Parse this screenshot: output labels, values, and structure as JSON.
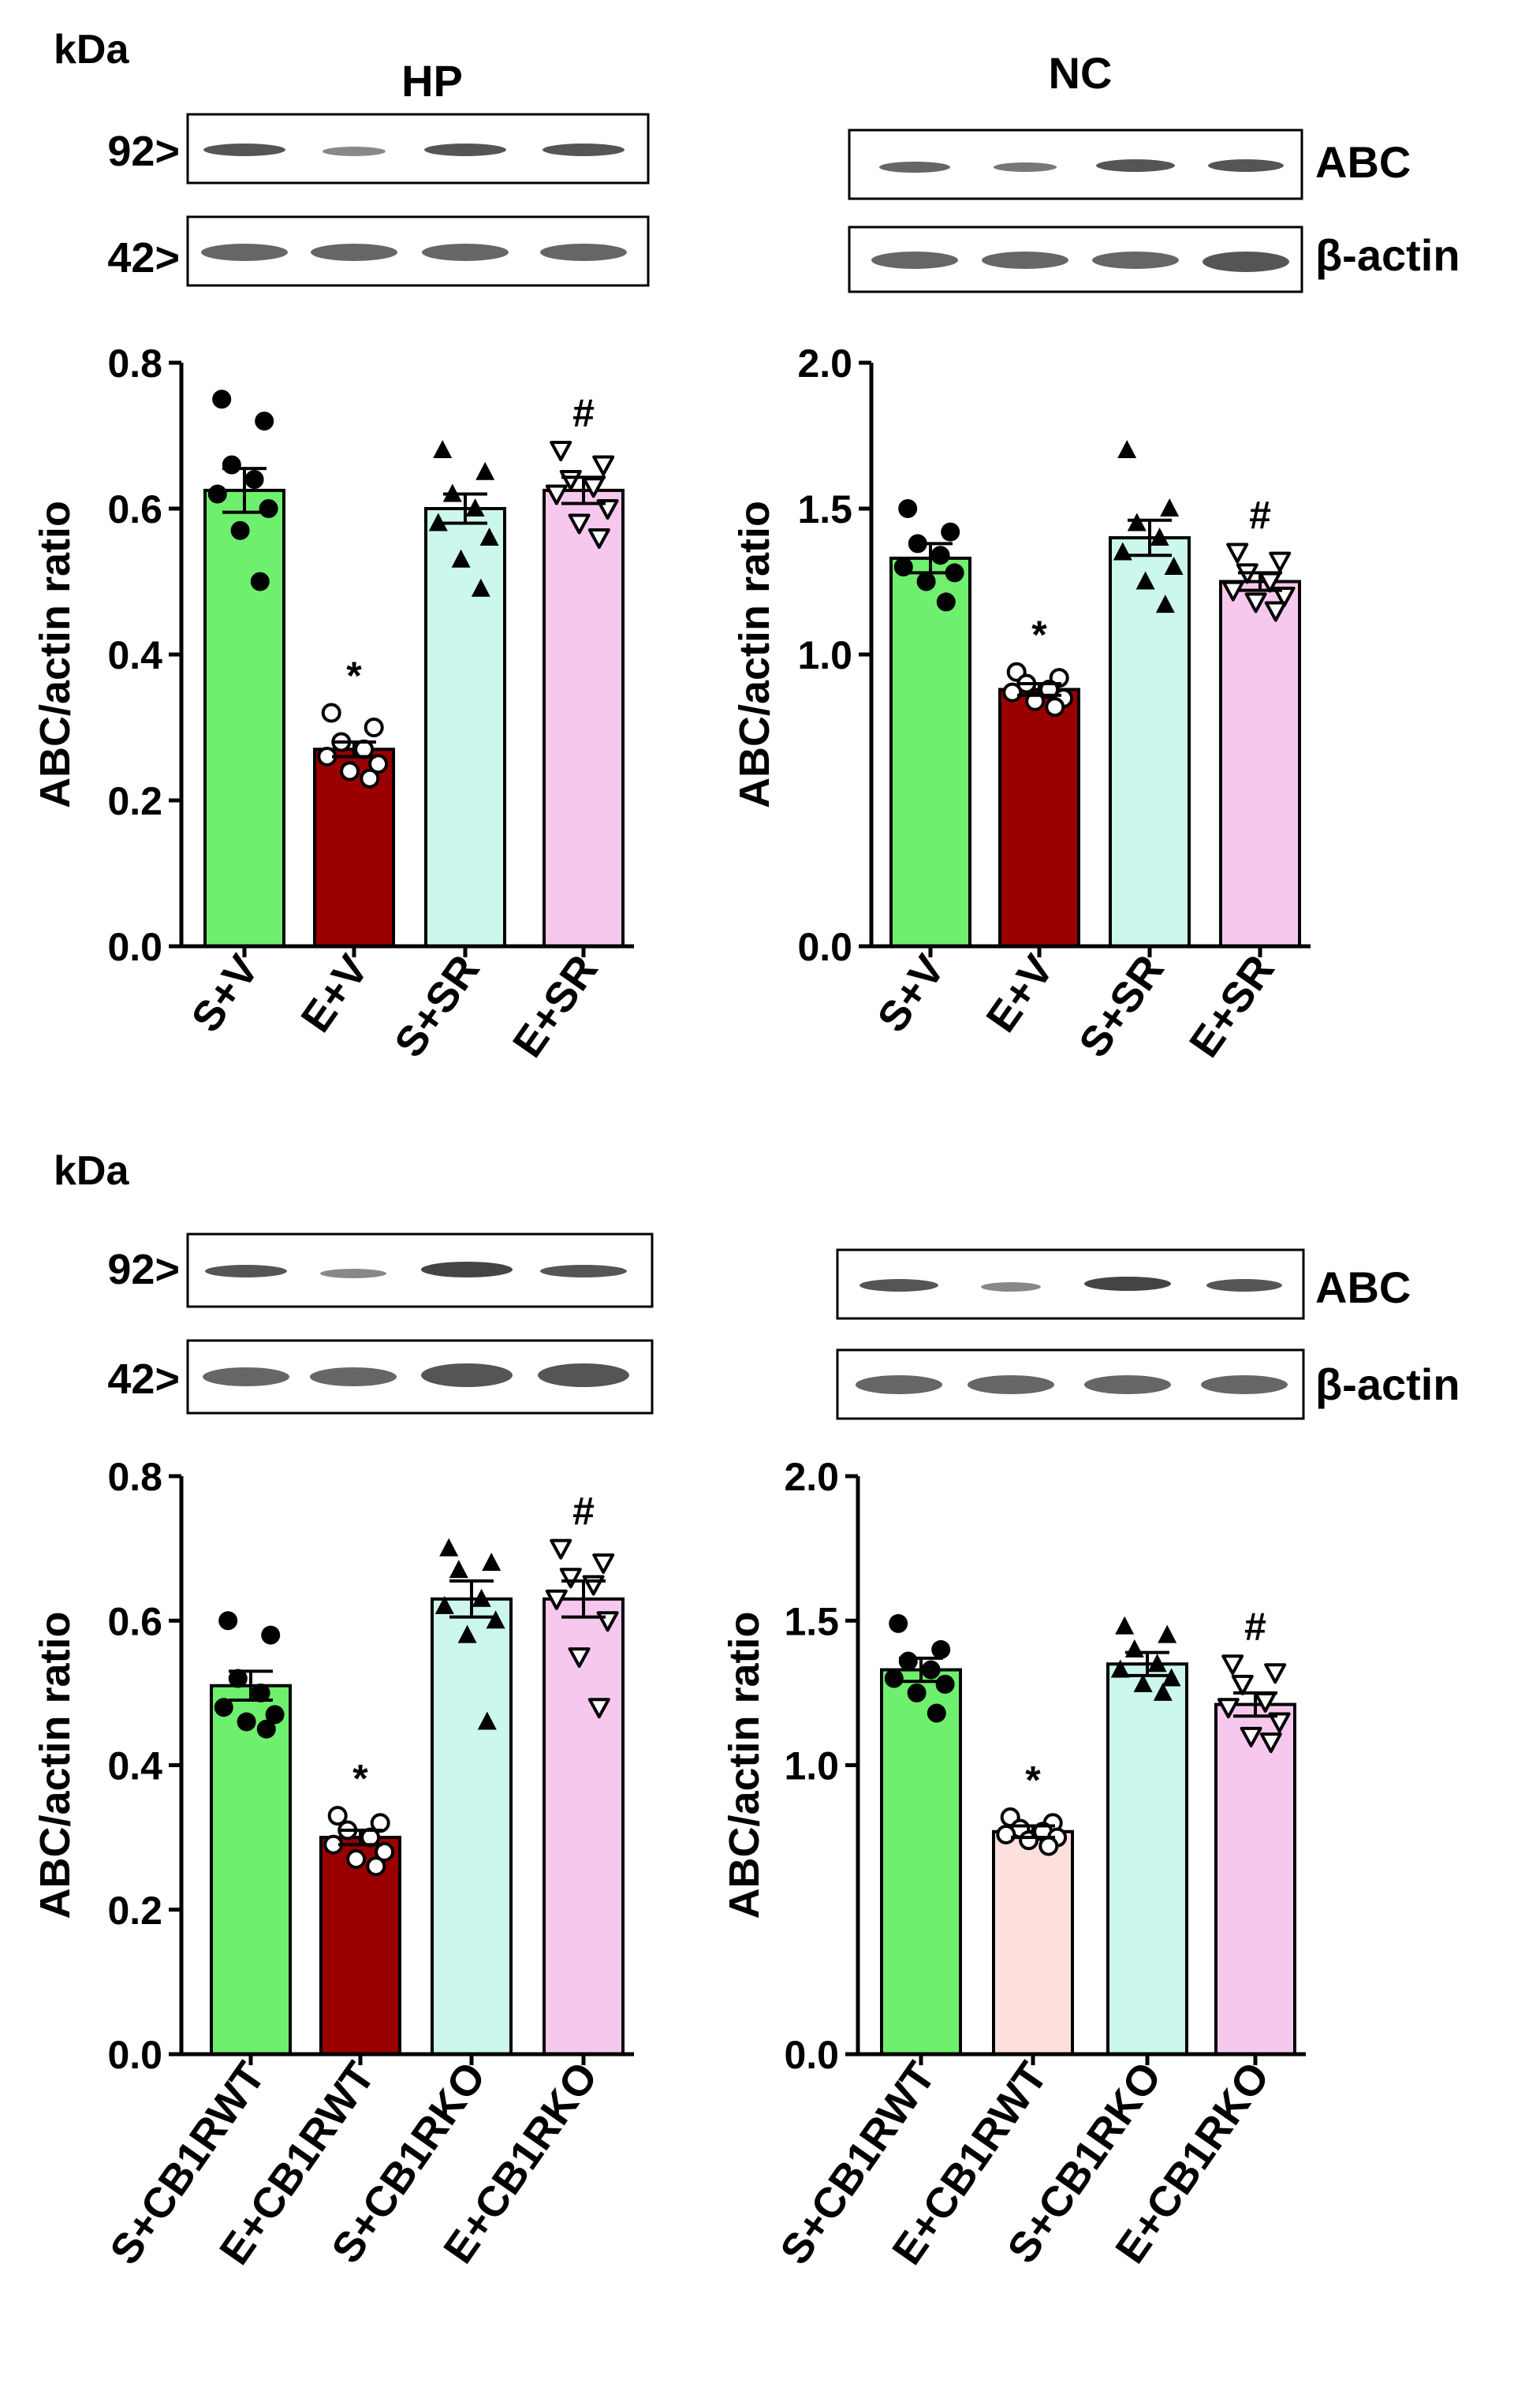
{
  "colors": {
    "green": "#6ef06e",
    "darkred": "#9b0000",
    "mint": "#ccf7ec",
    "pink": "#f7c8ee",
    "lightpink": "#fde0de",
    "black": "#000000"
  },
  "panels": [
    {
      "kda_label": "kDa",
      "blot_title": "HP",
      "markers": [
        "92>",
        "42>"
      ],
      "band_labels": []
    },
    {
      "kda_label": "",
      "blot_title": "NC",
      "markers": [],
      "band_labels": [
        "ABC",
        "β-actin"
      ]
    },
    {
      "kda_label": "kDa",
      "blot_title": "",
      "markers": [
        "92>",
        "42>"
      ],
      "band_labels": []
    },
    {
      "kda_label": "",
      "blot_title": "",
      "markers": [],
      "band_labels": [
        "ABC",
        "β-actin"
      ]
    }
  ],
  "chart_data": [
    {
      "type": "bar",
      "panel": "HP",
      "ylabel": "ABC/actin ratio",
      "ylim": [
        0,
        0.8
      ],
      "yticks": [
        "0.0",
        "0.2",
        "0.4",
        "0.6",
        "0.8"
      ],
      "categories": [
        "S+V",
        "E+V",
        "S+SR",
        "E+SR"
      ],
      "values": [
        0.625,
        0.27,
        0.6,
        0.625
      ],
      "sem": [
        0.03,
        0.01,
        0.02,
        0.018
      ],
      "marker_shapes": [
        "circle-filled",
        "circle-open",
        "triangle-up",
        "triangle-down-open"
      ],
      "bar_colors": [
        "green",
        "darkred",
        "mint",
        "pink"
      ],
      "significance": [
        "",
        "*",
        "",
        "#"
      ],
      "points": [
        [
          0.75,
          0.72,
          0.66,
          0.64,
          0.62,
          0.6,
          0.57,
          0.5
        ],
        [
          0.32,
          0.3,
          0.28,
          0.27,
          0.26,
          0.25,
          0.24,
          0.23
        ],
        [
          0.68,
          0.65,
          0.62,
          0.6,
          0.58,
          0.56,
          0.53,
          0.49
        ],
        [
          0.68,
          0.66,
          0.64,
          0.63,
          0.62,
          0.6,
          0.58,
          0.56
        ]
      ]
    },
    {
      "type": "bar",
      "panel": "NC",
      "ylabel": "ABC/actin ratio",
      "ylim": [
        0,
        2.0
      ],
      "yticks": [
        "0.0",
        "1.0",
        "1.5",
        "2.0"
      ],
      "tick_values": [
        0,
        1.0,
        1.5,
        2.0
      ],
      "categories": [
        "S+V",
        "E+V",
        "S+SR",
        "E+SR"
      ],
      "values": [
        1.33,
        0.88,
        1.4,
        1.25
      ],
      "sem": [
        0.05,
        0.02,
        0.06,
        0.03
      ],
      "marker_shapes": [
        "circle-filled",
        "circle-open",
        "triangle-up",
        "triangle-down-open"
      ],
      "bar_colors": [
        "green",
        "darkred",
        "mint",
        "pink"
      ],
      "significance": [
        "",
        "*",
        "",
        "#"
      ],
      "points": [
        [
          1.5,
          1.42,
          1.38,
          1.34,
          1.3,
          1.28,
          1.25,
          1.18
        ],
        [
          0.94,
          0.92,
          0.9,
          0.88,
          0.87,
          0.85,
          0.84,
          0.82
        ],
        [
          1.7,
          1.5,
          1.45,
          1.4,
          1.35,
          1.3,
          1.25,
          1.17
        ],
        [
          1.35,
          1.32,
          1.28,
          1.25,
          1.22,
          1.2,
          1.18,
          1.15
        ]
      ]
    },
    {
      "type": "bar",
      "panel": "HP",
      "ylabel": "ABC/actin ratio",
      "ylim": [
        0,
        0.8
      ],
      "yticks": [
        "0.0",
        "0.2",
        "0.4",
        "0.6",
        "0.8"
      ],
      "categories": [
        "S+CB1RWT",
        "E+CB1RWT",
        "S+CB1RKO",
        "E+CB1RKO"
      ],
      "values": [
        0.51,
        0.3,
        0.63,
        0.63
      ],
      "sem": [
        0.02,
        0.01,
        0.025,
        0.025
      ],
      "marker_shapes": [
        "circle-filled",
        "circle-open",
        "triangle-up",
        "triangle-down-open"
      ],
      "bar_colors": [
        "green",
        "darkred",
        "mint",
        "pink"
      ],
      "significance": [
        "",
        "*",
        "",
        "#"
      ],
      "points": [
        [
          0.6,
          0.58,
          0.52,
          0.5,
          0.48,
          0.47,
          0.46,
          0.45
        ],
        [
          0.33,
          0.32,
          0.31,
          0.3,
          0.29,
          0.28,
          0.27,
          0.26
        ],
        [
          0.7,
          0.68,
          0.67,
          0.63,
          0.62,
          0.6,
          0.58,
          0.46
        ],
        [
          0.7,
          0.68,
          0.66,
          0.65,
          0.63,
          0.6,
          0.55,
          0.48
        ]
      ]
    },
    {
      "type": "bar",
      "panel": "NC",
      "ylabel": "ABC/actin ratio",
      "ylim": [
        0,
        2.0
      ],
      "yticks": [
        "0.0",
        "1.0",
        "1.5",
        "2.0"
      ],
      "tick_values": [
        0,
        1.0,
        1.5,
        2.0
      ],
      "categories": [
        "S+CB1RWT",
        "E+CB1RWT",
        "S+CB1RKO",
        "E+CB1RKO"
      ],
      "values": [
        1.33,
        0.77,
        1.35,
        1.21
      ],
      "sem": [
        0.04,
        0.02,
        0.04,
        0.04
      ],
      "marker_shapes": [
        "circle-filled",
        "circle-open",
        "triangle-up",
        "triangle-down-open"
      ],
      "bar_colors": [
        "green",
        "lightpink",
        "mint",
        "pink"
      ],
      "significance": [
        "",
        "*",
        "",
        "#"
      ],
      "points": [
        [
          1.49,
          1.4,
          1.36,
          1.33,
          1.3,
          1.28,
          1.25,
          1.18
        ],
        [
          0.82,
          0.8,
          0.78,
          0.77,
          0.76,
          0.75,
          0.74,
          0.72
        ],
        [
          1.48,
          1.45,
          1.4,
          1.35,
          1.33,
          1.3,
          1.28,
          1.25
        ],
        [
          1.35,
          1.32,
          1.28,
          1.22,
          1.2,
          1.15,
          1.1,
          1.08
        ]
      ]
    }
  ]
}
